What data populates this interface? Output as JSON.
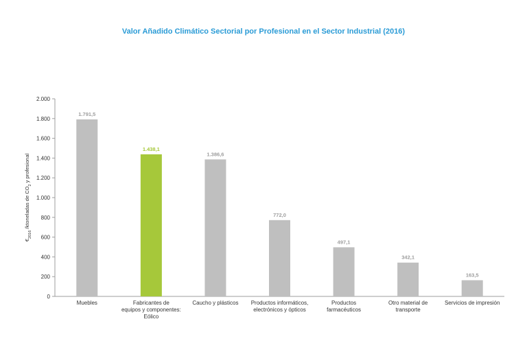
{
  "title": "Valor Añadido Climático Sectorial por Profesional en el Sector Industrial (2016)",
  "colors": {
    "title": "#2a9bd6",
    "bar_default": "#bfbfbf",
    "bar_highlight": "#a6c83a",
    "label_default": "#9e9e9e"
  },
  "chart_data": {
    "type": "bar",
    "title": "Valor Añadido Climático Sectorial por Profesional en el Sector Industrial (2016)",
    "ylabel_parts": [
      "€",
      "2016",
      " /ktoneladas de CO",
      "2",
      " y profesional"
    ],
    "ylim": [
      0,
      2000
    ],
    "yticks": [
      {
        "value": 0,
        "label": "0"
      },
      {
        "value": 200,
        "label": "200"
      },
      {
        "value": 400,
        "label": "400"
      },
      {
        "value": 600,
        "label": "600"
      },
      {
        "value": 800,
        "label": "800"
      },
      {
        "value": 1000,
        "label": "1.000"
      },
      {
        "value": 1200,
        "label": "1.200"
      },
      {
        "value": 1400,
        "label": "1.400"
      },
      {
        "value": 1600,
        "label": "1.600"
      },
      {
        "value": 1800,
        "label": "1.800"
      },
      {
        "value": 2000,
        "label": "2.000"
      }
    ],
    "grid": false,
    "legend": "none",
    "categories": [
      [
        "Muebles"
      ],
      [
        "Fabricantes de",
        "equipos y componentes:",
        "Eólico"
      ],
      [
        "Caucho y plásticos"
      ],
      [
        "Productos informáticos,",
        "electrónicos y ópticos"
      ],
      [
        "Productos",
        "farmacéuticos"
      ],
      [
        "Otro material de",
        "transporte"
      ],
      [
        "Servicios de impresión"
      ]
    ],
    "values": [
      1791.5,
      1438.1,
      1386.6,
      772.0,
      497.1,
      342.1,
      163.5
    ],
    "value_labels": [
      "1.791,5",
      "1.438,1",
      "1.386,6",
      "772,0",
      "497,1",
      "342,1",
      "163,5"
    ],
    "highlight_index": 1
  }
}
